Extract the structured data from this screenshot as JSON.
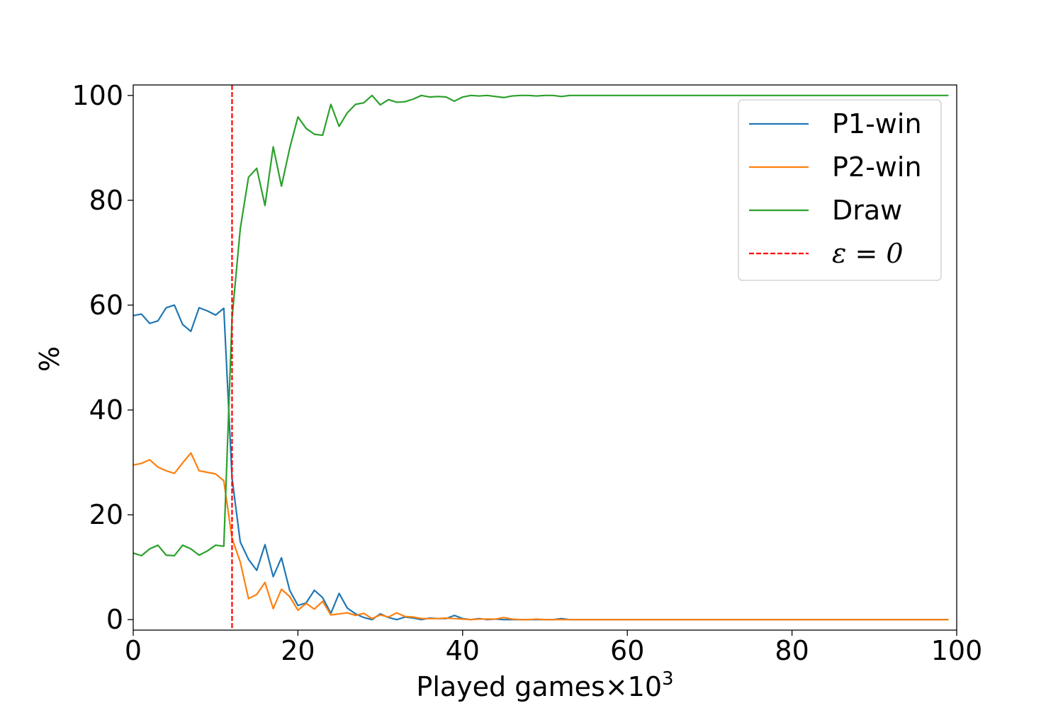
{
  "chart_data": {
    "type": "line",
    "title": "",
    "xlabel": "Played games×10",
    "xlabel_superscript": "3",
    "ylabel": "%",
    "xlim": [
      0,
      100
    ],
    "ylim": [
      -2,
      102
    ],
    "xticks": [
      0,
      20,
      40,
      60,
      80,
      100
    ],
    "yticks": [
      0,
      20,
      40,
      60,
      80,
      100
    ],
    "grid": false,
    "legend_position": "top-right",
    "x": [
      0,
      1,
      2,
      3,
      4,
      5,
      6,
      7,
      8,
      9,
      10,
      11,
      12,
      13,
      14,
      15,
      16,
      17,
      18,
      19,
      20,
      21,
      22,
      23,
      24,
      25,
      26,
      27,
      28,
      29,
      30,
      31,
      32,
      33,
      34,
      35,
      36,
      37,
      38,
      39,
      40,
      41,
      42,
      43,
      44,
      45,
      46,
      47,
      48,
      49,
      50,
      51,
      52,
      53,
      54,
      55,
      56,
      57,
      58,
      59,
      60,
      61,
      62,
      63,
      64,
      65,
      66,
      67,
      68,
      69,
      70,
      71,
      72,
      73,
      74,
      75,
      76,
      77,
      78,
      79,
      80,
      81,
      82,
      83,
      84,
      85,
      86,
      87,
      88,
      89,
      90,
      91,
      92,
      93,
      94,
      95,
      96,
      97,
      98,
      99
    ],
    "series": [
      {
        "name": "P1-win",
        "color": "#1f77b4",
        "values": [
          58,
          58.3,
          56.5,
          57,
          59.5,
          60,
          56.3,
          55,
          59.5,
          58.9,
          58.1,
          59.4,
          27,
          14.8,
          11.5,
          9.4,
          14.3,
          8.2,
          11.8,
          5.6,
          2.7,
          3.2,
          5.6,
          4.2,
          1.2,
          5,
          2.2,
          1.1,
          0.4,
          0,
          1.1,
          0.4,
          0,
          0.5,
          0.3,
          0,
          0.3,
          0.2,
          0.2,
          0.8,
          0.2,
          0,
          0.2,
          0,
          0.1,
          0,
          0,
          0,
          0,
          0,
          0,
          0,
          0.2,
          0,
          0,
          0,
          0,
          0,
          0,
          0,
          0,
          0,
          0,
          0,
          0,
          0,
          0,
          0,
          0,
          0,
          0,
          0,
          0,
          0,
          0,
          0,
          0,
          0,
          0,
          0,
          0,
          0,
          0,
          0,
          0,
          0,
          0,
          0,
          0,
          0,
          0,
          0,
          0,
          0,
          0,
          0,
          0,
          0,
          0,
          0
        ]
      },
      {
        "name": "P2-win",
        "color": "#ff7f0e",
        "values": [
          29.5,
          29.8,
          30.5,
          29.1,
          28.4,
          27.9,
          29.9,
          31.8,
          28.4,
          28.1,
          27.8,
          26.5,
          15.5,
          11,
          4,
          4.8,
          7.1,
          2.1,
          5.8,
          4.4,
          1.8,
          3.1,
          2,
          3.5,
          0.9,
          1.1,
          1.3,
          0.8,
          1.2,
          0.2,
          0.9,
          0.5,
          1.3,
          0.6,
          0.5,
          0.2,
          0.2,
          0.2,
          0.3,
          0.2,
          0.1,
          0,
          0.1,
          0.1,
          0.1,
          0.4,
          0.1,
          0,
          0,
          0.1,
          0,
          0,
          0,
          0,
          0,
          0,
          0,
          0,
          0,
          0,
          0,
          0,
          0,
          0,
          0,
          0,
          0,
          0,
          0,
          0,
          0,
          0,
          0,
          0,
          0,
          0,
          0,
          0,
          0,
          0,
          0,
          0,
          0,
          0,
          0,
          0,
          0,
          0,
          0,
          0,
          0,
          0,
          0,
          0,
          0,
          0,
          0,
          0,
          0,
          0
        ]
      },
      {
        "name": "Draw",
        "color": "#2ca02c",
        "values": [
          12.7,
          12.2,
          13.5,
          14.2,
          12.3,
          12.2,
          14.2,
          13.5,
          12.3,
          13.1,
          14.2,
          14,
          57.5,
          74.6,
          84.4,
          86.1,
          79,
          90.2,
          82.7,
          89.9,
          95.9,
          93.7,
          92.6,
          92.4,
          98.3,
          94.1,
          96.7,
          98.3,
          98.6,
          100,
          98.2,
          99.2,
          98.7,
          98.8,
          99.3,
          100,
          99.7,
          99.8,
          99.7,
          98.9,
          99.7,
          100,
          99.9,
          100,
          99.8,
          99.6,
          99.9,
          100,
          100,
          99.9,
          100,
          100,
          99.8,
          100,
          100,
          100,
          100,
          100,
          100,
          100,
          100,
          100,
          100,
          100,
          100,
          100,
          100,
          100,
          100,
          100,
          100,
          100,
          100,
          100,
          100,
          100,
          100,
          100,
          100,
          100,
          100,
          100,
          100,
          100,
          100,
          100,
          100,
          100,
          100,
          100,
          100,
          100,
          100,
          100,
          100,
          100,
          100,
          100,
          100,
          100
        ]
      }
    ],
    "vline": {
      "name": "ε = 0",
      "x": 12,
      "color": "#ff0000",
      "style": "dashed"
    },
    "legend": [
      {
        "label": "P1-win",
        "color": "#1f77b4"
      },
      {
        "label": "P2-win",
        "color": "#ff7f0e"
      },
      {
        "label": "Draw",
        "color": "#2ca02c"
      },
      {
        "label": "ε = 0",
        "color": "#ff0000"
      }
    ]
  }
}
